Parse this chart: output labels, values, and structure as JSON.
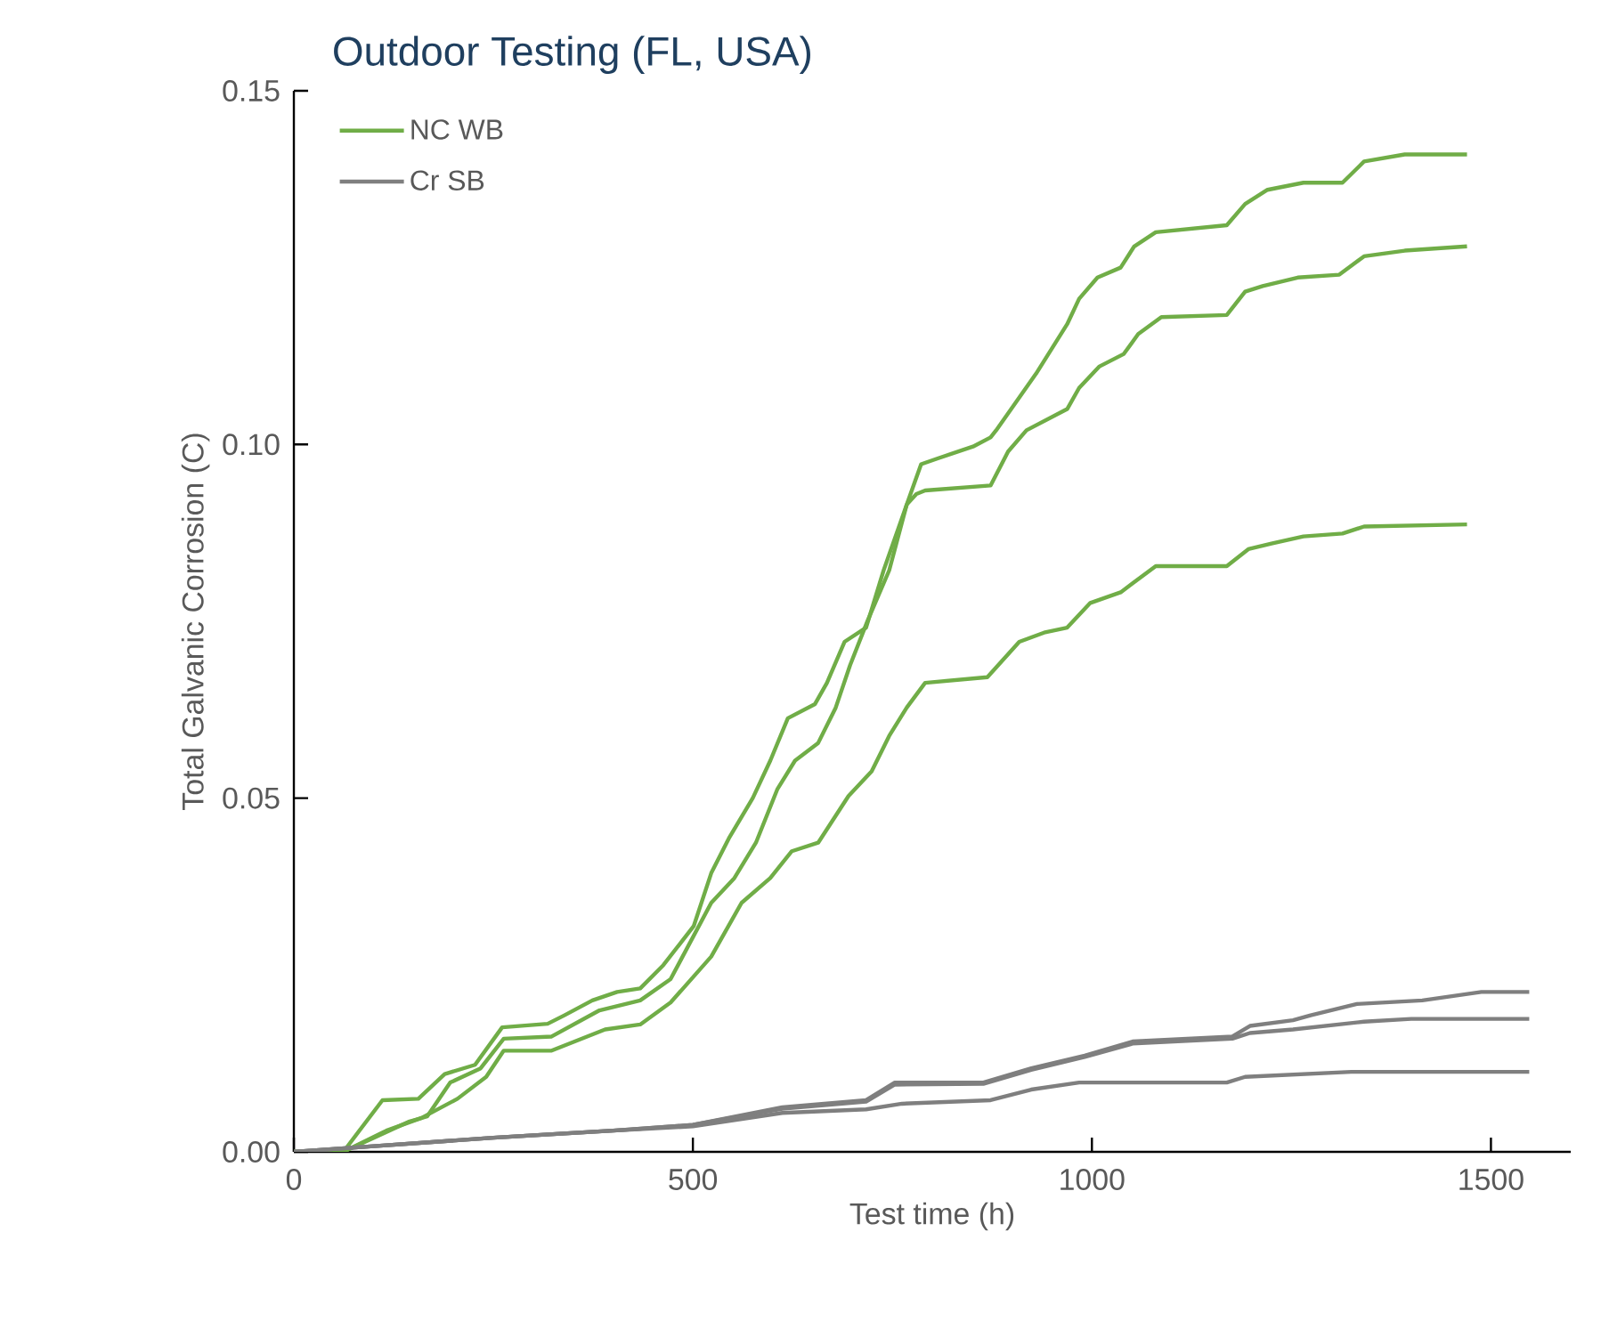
{
  "chart_data": {
    "type": "line",
    "title": "Outdoor Testing (FL, USA)",
    "xlabel": "Test time (h)",
    "ylabel": "Total Galvanic Corrosion (C)",
    "xlim": [
      0,
      1600
    ],
    "ylim": [
      0,
      0.15
    ],
    "xticks": [
      0,
      500,
      1000,
      1500
    ],
    "yticks": [
      {
        "value": 0,
        "label": "0.00"
      },
      {
        "value": 0.05,
        "label": "0.05"
      },
      {
        "value": 0.1,
        "label": "0.10"
      },
      {
        "value": 0.15,
        "label": "0.15"
      }
    ],
    "legend": "top left",
    "series": [
      {
        "name": "NC WB",
        "color": "#70ad47",
        "x": [
          0,
          62,
          111,
          156,
          189,
          227,
          261,
          318,
          339,
          374,
          405,
          434,
          463,
          501,
          523,
          546,
          575,
          597,
          619,
          653,
          668,
          690,
          717,
          739,
          768,
          786,
          806,
          851,
          873,
          880,
          930,
          969,
          984,
          1007,
          1036,
          1053,
          1080,
          1169,
          1192,
          1220,
          1265,
          1314,
          1341,
          1392,
          1470
        ],
        "values": [
          0,
          0,
          0.0073,
          0.0075,
          0.011,
          0.0123,
          0.0176,
          0.0181,
          0.0193,
          0.0214,
          0.0226,
          0.0231,
          0.0264,
          0.0319,
          0.0394,
          0.0445,
          0.05,
          0.0553,
          0.0613,
          0.0633,
          0.0663,
          0.0721,
          0.0741,
          0.0822,
          0.0915,
          0.0972,
          0.098,
          0.0997,
          0.101,
          0.102,
          0.11,
          0.117,
          0.1206,
          0.1236,
          0.125,
          0.128,
          0.13,
          0.131,
          0.134,
          0.136,
          0.137,
          0.137,
          0.14,
          0.141,
          0.141
        ]
      },
      {
        "color": "#70ad47",
        "x": [
          0,
          62,
          145,
          167,
          196,
          234,
          263,
          323,
          383,
          434,
          472,
          523,
          552,
          579,
          606,
          628,
          657,
          679,
          697,
          719,
          746,
          768,
          780,
          791,
          873,
          895,
          918,
          969,
          984,
          1009,
          1040,
          1058,
          1087,
          1169,
          1192,
          1214,
          1258,
          1310,
          1341,
          1392,
          1470
        ],
        "values": [
          0,
          0,
          0.0043,
          0.005,
          0.0098,
          0.0118,
          0.016,
          0.0163,
          0.02,
          0.0214,
          0.0244,
          0.0352,
          0.0387,
          0.0437,
          0.0513,
          0.0553,
          0.0578,
          0.0628,
          0.0688,
          0.0751,
          0.0822,
          0.0915,
          0.093,
          0.0935,
          0.0942,
          0.099,
          0.102,
          0.105,
          0.108,
          0.111,
          0.1128,
          0.1156,
          0.118,
          0.1183,
          0.1216,
          0.1224,
          0.1236,
          0.124,
          0.1266,
          0.1274,
          0.128
        ]
      },
      {
        "color": "#70ad47",
        "x": [
          0,
          62,
          116,
          160,
          205,
          241,
          263,
          323,
          390,
          434,
          472,
          523,
          561,
          597,
          624,
          657,
          695,
          724,
          746,
          768,
          791,
          869,
          909,
          940,
          969,
          998,
          1036,
          1080,
          1169,
          1196,
          1225,
          1265,
          1314,
          1341,
          1470
        ],
        "values": [
          0,
          0,
          0.003,
          0.0048,
          0.0075,
          0.0106,
          0.0143,
          0.0143,
          0.0173,
          0.018,
          0.0211,
          0.0276,
          0.0352,
          0.0387,
          0.0425,
          0.0437,
          0.0503,
          0.0538,
          0.0588,
          0.0628,
          0.0663,
          0.0671,
          0.0721,
          0.0734,
          0.0741,
          0.0776,
          0.0791,
          0.0828,
          0.0828,
          0.0852,
          0.086,
          0.087,
          0.0874,
          0.0884,
          0.0887
        ]
      },
      {
        "name": "Cr SB",
        "color": "#7f7f7f",
        "x": [
          0,
          100,
          250,
          400,
          500,
          612,
          717,
          753,
          864,
          924,
          991,
          1051,
          1176,
          1198,
          1252,
          1274,
          1332,
          1414,
          1488,
          1548
        ],
        "values": [
          0,
          0.0008,
          0.002,
          0.003,
          0.0038,
          0.0063,
          0.0073,
          0.0098,
          0.0098,
          0.0118,
          0.0136,
          0.0156,
          0.0163,
          0.0178,
          0.0186,
          0.0193,
          0.0209,
          0.0214,
          0.0226,
          0.0226
        ]
      },
      {
        "color": "#7f7f7f",
        "x": [
          0,
          100,
          250,
          400,
          500,
          612,
          717,
          753,
          864,
          924,
          991,
          1051,
          1176,
          1198,
          1252,
          1341,
          1400,
          1548
        ],
        "values": [
          0,
          0.0008,
          0.002,
          0.003,
          0.0038,
          0.0061,
          0.0071,
          0.0095,
          0.0096,
          0.0116,
          0.0134,
          0.0153,
          0.016,
          0.0168,
          0.0173,
          0.0184,
          0.0188,
          0.0188
        ]
      },
      {
        "color": "#7f7f7f",
        "x": [
          0,
          100,
          250,
          400,
          500,
          612,
          717,
          762,
          873,
          924,
          984,
          1169,
          1192,
          1325,
          1548
        ],
        "values": [
          0,
          0.0008,
          0.002,
          0.003,
          0.0036,
          0.0055,
          0.006,
          0.0068,
          0.0073,
          0.0088,
          0.0098,
          0.0098,
          0.0106,
          0.0113,
          0.0113
        ]
      }
    ]
  }
}
